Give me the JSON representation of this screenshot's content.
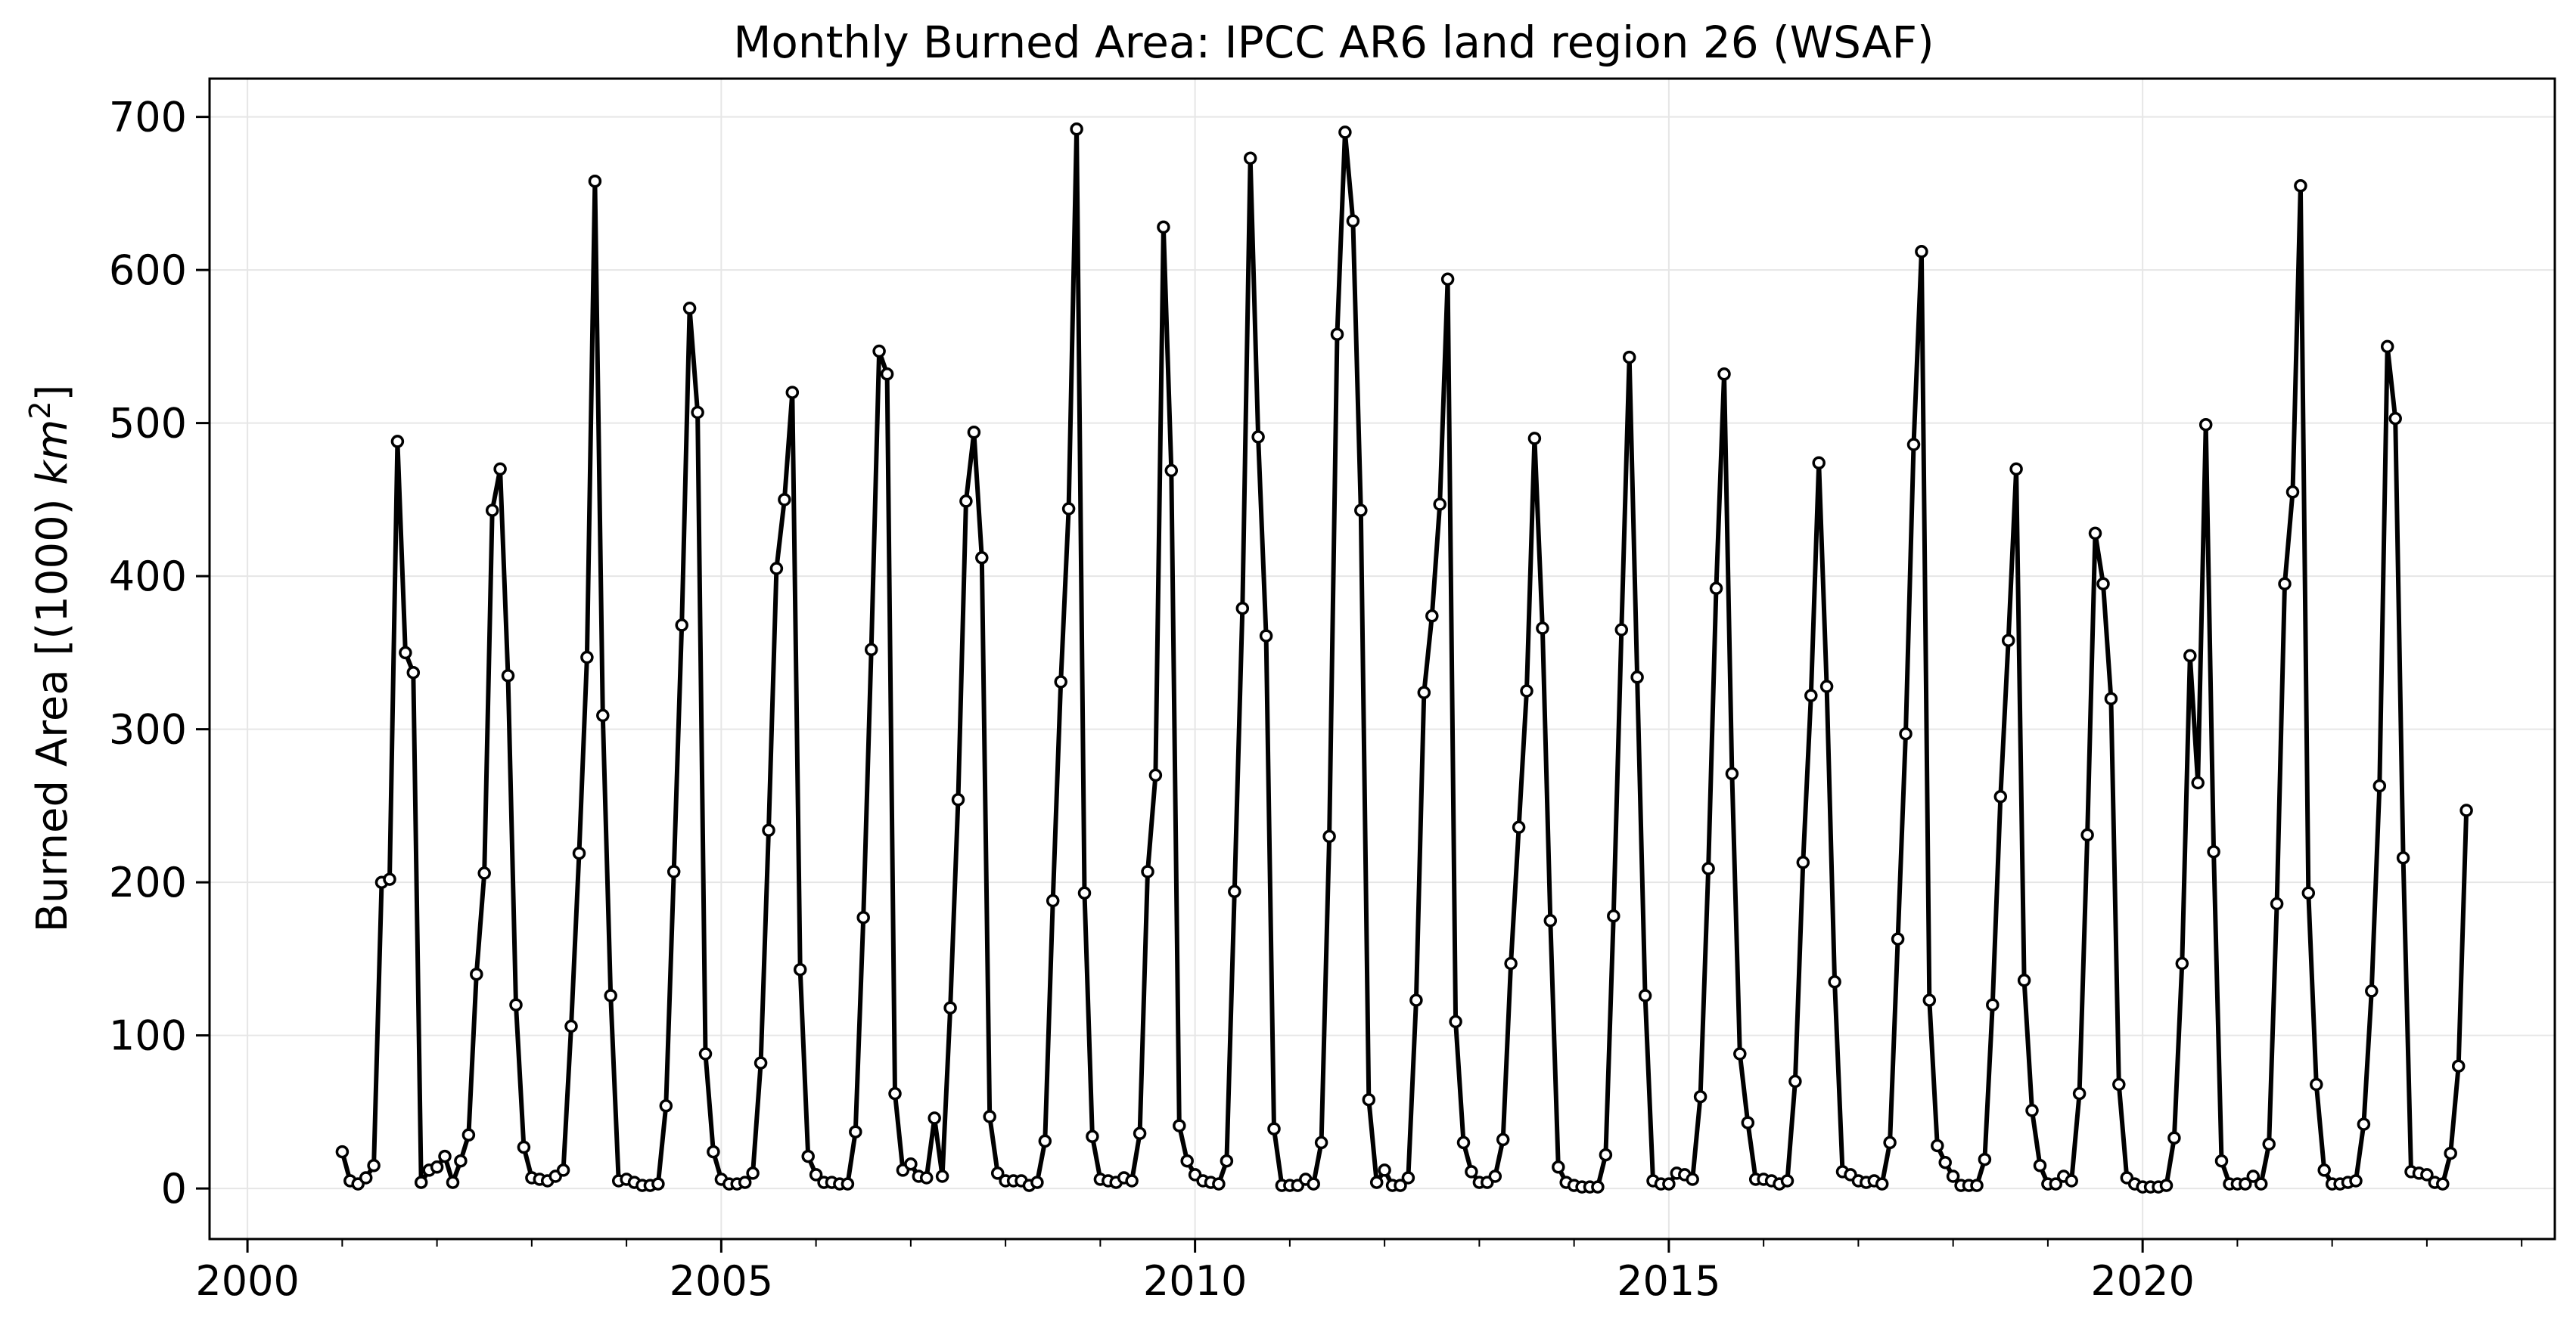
{
  "chart_data": {
    "type": "line",
    "title": "Monthly Burned Area: IPCC AR6 land region 26 (WSAF)",
    "xlabel": "",
    "ylabel": "Burned Area [(1000) km²]",
    "ylabel_parts": {
      "pre": "Burned Area [(1000) ",
      "unit": "km",
      "sup": "2",
      "post": "]"
    },
    "xlim": [
      1999.6,
      2024.35
    ],
    "ylim": [
      -33,
      725
    ],
    "x_ticks": [
      2000,
      2005,
      2010,
      2015,
      2020
    ],
    "x_tick_labels": [
      "2000",
      "2005",
      "2010",
      "2015",
      "2020"
    ],
    "y_ticks": [
      0,
      100,
      200,
      300,
      400,
      500,
      600,
      700
    ],
    "y_tick_labels": [
      "0",
      "100",
      "200",
      "300",
      "400",
      "500",
      "600",
      "700"
    ],
    "grid": true,
    "marker": "circle-open",
    "series_color": "#000000",
    "start": "2001-01",
    "frequency": "monthly",
    "values": [
      24,
      5,
      3,
      7,
      15,
      200,
      202,
      488,
      350,
      337,
      4,
      12,
      14,
      21,
      4,
      18,
      35,
      140,
      206,
      443,
      470,
      335,
      120,
      27,
      7,
      6,
      5,
      8,
      12,
      106,
      219,
      347,
      658,
      309,
      126,
      5,
      6,
      4,
      2,
      2,
      3,
      54,
      207,
      368,
      575,
      507,
      88,
      24,
      6,
      3,
      3,
      4,
      10,
      82,
      234,
      405,
      450,
      520,
      143,
      21,
      9,
      4,
      4,
      3,
      3,
      37,
      177,
      352,
      547,
      532,
      62,
      12,
      16,
      8,
      7,
      46,
      8,
      118,
      254,
      449,
      494,
      412,
      47,
      10,
      5,
      5,
      5,
      2,
      4,
      31,
      188,
      331,
      444,
      692,
      193,
      34,
      6,
      5,
      4,
      7,
      5,
      36,
      207,
      270,
      628,
      469,
      41,
      18,
      9,
      5,
      4,
      3,
      18,
      194,
      379,
      673,
      491,
      361,
      39,
      2,
      2,
      2,
      6,
      3,
      30,
      230,
      558,
      690,
      632,
      443,
      58,
      4,
      12,
      2,
      2,
      7,
      123,
      324,
      374,
      447,
      594,
      109,
      30,
      11,
      4,
      4,
      8,
      32,
      147,
      236,
      325,
      490,
      366,
      175,
      14,
      4,
      2,
      1,
      1,
      1,
      22,
      178,
      365,
      543,
      334,
      126,
      5,
      3,
      3,
      10,
      9,
      6,
      60,
      209,
      392,
      532,
      271,
      88,
      43,
      6,
      6,
      5,
      3,
      5,
      70,
      213,
      322,
      474,
      328,
      135,
      11,
      9,
      5,
      4,
      5,
      3,
      30,
      163,
      297,
      486,
      612,
      123,
      28,
      17,
      8,
      2,
      2,
      2,
      19,
      120,
      256,
      358,
      470,
      136,
      51,
      15,
      3,
      3,
      8,
      5,
      62,
      231,
      428,
      395,
      320,
      68,
      7,
      3,
      1,
      1,
      1,
      2,
      33,
      147,
      348,
      265,
      499,
      220,
      18,
      3,
      3,
      3,
      8,
      3,
      29,
      186,
      395,
      455,
      655,
      193,
      68,
      12,
      3,
      3,
      4,
      5,
      42,
      129,
      263,
      550,
      503,
      216,
      11,
      10,
      9,
      4,
      3,
      23,
      80,
      247
    ]
  }
}
